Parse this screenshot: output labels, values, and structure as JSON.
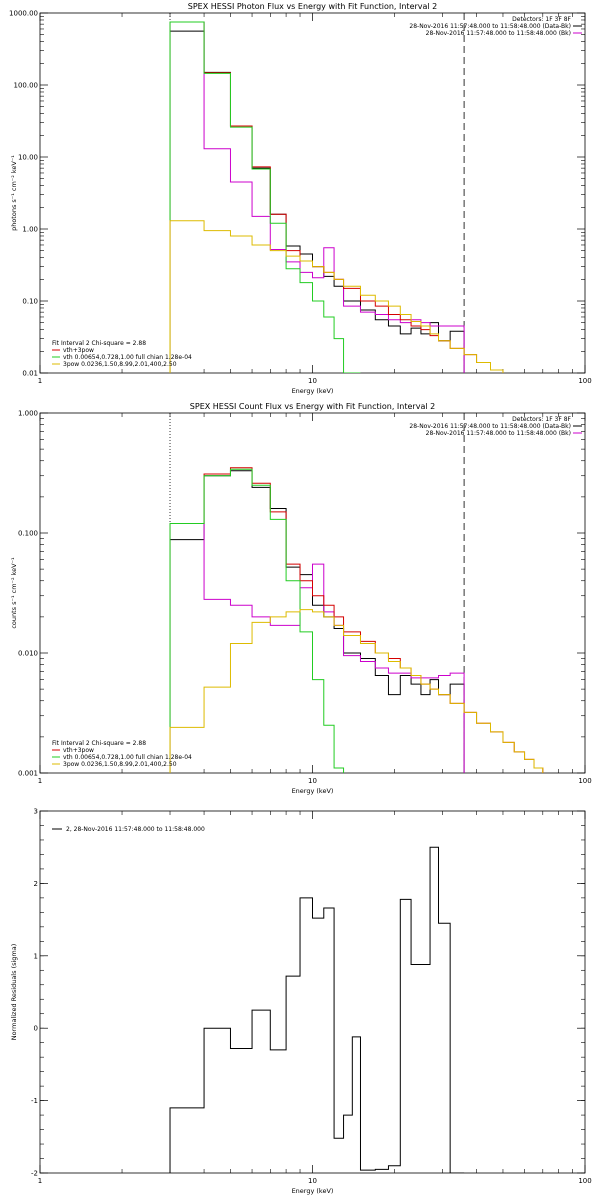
{
  "chart_data": [
    {
      "type": "line",
      "title": "SPEX HESSI Photon Flux vs Energy with Fit Function, Interval 2",
      "xlabel": "Energy (keV)",
      "ylabel": "photons s⁻¹ cm⁻² keV⁻¹",
      "xscale": "log",
      "yscale": "log",
      "xlim": [
        1,
        100
      ],
      "ylim": [
        0.01,
        1000
      ],
      "x_ticks": [
        {
          "v": 1,
          "label": "1"
        },
        {
          "v": 10,
          "label": "10"
        },
        {
          "v": 100,
          "label": "100"
        }
      ],
      "y_ticks": [
        {
          "v": 0.01,
          "label": "0.01"
        },
        {
          "v": 0.1,
          "label": "0.10"
        },
        {
          "v": 1,
          "label": "1.00"
        },
        {
          "v": 10,
          "label": "10.00"
        },
        {
          "v": 100,
          "label": "100.00"
        },
        {
          "v": 1000,
          "label": "1000.00"
        }
      ],
      "vlines": [
        {
          "x": 3.0,
          "style": "dotted",
          "color": "#000000"
        },
        {
          "x": 36.0,
          "style": "dashed",
          "color": "#000000"
        }
      ],
      "annot_right": [
        "Detectors: 1F 3F 8F",
        "28-Nov-2016 11:57:48.000 to 11:58:48.000 (Data-Bk)",
        "28-Nov-2016 11:57:48.000 to 11:58:48.000 (Bk)"
      ],
      "annot_right_colors": [
        "#000000",
        "#000000",
        "#cc00cc"
      ],
      "legend_title": "Fit Interval 2  Chi-square = 2.88",
      "legend": [
        {
          "label": "vth+3pow",
          "color": "#d40000"
        },
        {
          "label": "vth 0.00654,0.728,1.00  full chian 1.28e-04",
          "color": "#22cc22"
        },
        {
          "label": "3pow 0.0236,1.50,8.99,2.01,400,2.50",
          "color": "#ddbb00"
        }
      ],
      "edges": [
        3,
        4,
        5,
        6,
        7,
        8,
        9,
        10,
        11,
        12,
        13,
        15,
        17,
        19,
        21,
        23,
        25,
        27,
        29,
        32,
        36,
        40,
        45,
        50
      ],
      "series": [
        {
          "color": "#000000",
          "values": [
            560,
            150,
            27,
            7.0,
            1.6,
            0.58,
            0.45,
            0.3,
            0.22,
            0.16,
            0.1,
            0.075,
            0.055,
            0.045,
            0.035,
            0.042,
            0.035,
            0.05,
            0.028,
            0.038
          ]
        },
        {
          "color": "#cc00cc",
          "values": [
            750,
            13,
            4.5,
            1.5,
            0.52,
            0.35,
            0.25,
            0.21,
            0.55,
            0.2,
            0.085,
            0.07,
            0.065,
            0.055,
            0.05,
            0.055,
            0.05,
            0.045,
            0.045,
            0.045
          ]
        },
        {
          "color": "#d40000",
          "values": [
            750,
            148,
            27,
            7.3,
            1.6,
            0.5,
            0.36,
            0.3,
            0.25,
            0.2,
            0.15,
            0.1,
            0.085,
            0.065,
            0.055,
            0.045,
            0.04,
            0.033,
            0.028,
            0.022,
            0.018,
            0.014,
            0.011
          ]
        },
        {
          "color": "#22cc22",
          "values": [
            750,
            145,
            26,
            6.8,
            1.2,
            0.28,
            0.18,
            0.1,
            0.06,
            0.03,
            0.01
          ]
        },
        {
          "color": "#ddbb00",
          "values": [
            1.3,
            0.95,
            0.8,
            0.6,
            0.5,
            0.42,
            0.36,
            0.3,
            0.25,
            0.2,
            0.16,
            0.12,
            0.1,
            0.085,
            0.065,
            0.052,
            0.045,
            0.035,
            0.028,
            0.022,
            0.018,
            0.014,
            0.011
          ]
        }
      ]
    },
    {
      "type": "line",
      "title": "SPEX HESSI Count Flux vs Energy with Fit Function, Interval 2",
      "xlabel": "Energy (keV)",
      "ylabel": "counts s⁻¹ cm⁻² keV⁻¹",
      "xscale": "log",
      "yscale": "log",
      "xlim": [
        1,
        100
      ],
      "ylim": [
        0.001,
        1
      ],
      "x_ticks": [
        {
          "v": 1,
          "label": "1"
        },
        {
          "v": 10,
          "label": "10"
        },
        {
          "v": 100,
          "label": "100"
        }
      ],
      "y_ticks": [
        {
          "v": 0.001,
          "label": "0.001"
        },
        {
          "v": 0.01,
          "label": "0.010"
        },
        {
          "v": 0.1,
          "label": "0.100"
        },
        {
          "v": 1,
          "label": "1.000"
        }
      ],
      "vlines": [
        {
          "x": 3.0,
          "style": "dotted",
          "color": "#000000"
        },
        {
          "x": 36.0,
          "style": "dashed",
          "color": "#000000"
        }
      ],
      "annot_right": [
        "Detectors: 1F 3F 8F",
        "28-Nov-2016 11:57:48.000 to 11:58:48.000 (Data-Bk)",
        "28-Nov-2016 11:57:48.000 to 11:58:48.000 (Bk)"
      ],
      "annot_right_colors": [
        "#000000",
        "#000000",
        "#cc00cc"
      ],
      "legend_title": "Fit Interval 2  Chi-square = 2.88",
      "legend": [
        {
          "label": "vth+3pow",
          "color": "#d40000"
        },
        {
          "label": "vth 0.00654,0.728,1.00  full chian 1.28e-04",
          "color": "#22cc22"
        },
        {
          "label": "3pow 0.0236,1.50,8.99,2.01,400,2.50",
          "color": "#ddbb00"
        }
      ],
      "edges": [
        3,
        4,
        5,
        6,
        7,
        8,
        9,
        10,
        11,
        12,
        13,
        15,
        17,
        19,
        21,
        23,
        25,
        27,
        29,
        32,
        36,
        40,
        45,
        50,
        55,
        60,
        65,
        70
      ],
      "series": [
        {
          "color": "#000000",
          "values": [
            0.088,
            0.3,
            0.33,
            0.24,
            0.16,
            0.052,
            0.045,
            0.025,
            0.02,
            0.016,
            0.01,
            0.009,
            0.0065,
            0.0045,
            0.0065,
            0.0055,
            0.0045,
            0.006,
            0.0045,
            0.0055
          ]
        },
        {
          "color": "#cc00cc",
          "values": [
            0.12,
            0.028,
            0.025,
            0.02,
            0.017,
            0.017,
            0.035,
            0.055,
            0.022,
            0.017,
            0.0095,
            0.0085,
            0.0075,
            0.0068,
            0.0068,
            0.0062,
            0.0062,
            0.0062,
            0.0065,
            0.0068
          ]
        },
        {
          "color": "#d40000",
          "values": [
            0.12,
            0.31,
            0.35,
            0.26,
            0.15,
            0.055,
            0.04,
            0.03,
            0.025,
            0.02,
            0.015,
            0.0125,
            0.01,
            0.009,
            0.0075,
            0.0065,
            0.0055,
            0.005,
            0.0045,
            0.0038,
            0.0032,
            0.0026,
            0.0022,
            0.0018,
            0.0015,
            0.0013,
            0.0011
          ]
        },
        {
          "color": "#22cc22",
          "values": [
            0.12,
            0.3,
            0.34,
            0.25,
            0.13,
            0.04,
            0.015,
            0.006,
            0.0025,
            0.0011
          ]
        },
        {
          "color": "#ddbb00",
          "values": [
            0.0024,
            0.0052,
            0.012,
            0.018,
            0.02,
            0.022,
            0.023,
            0.022,
            0.02,
            0.017,
            0.014,
            0.012,
            0.01,
            0.0085,
            0.0075,
            0.0065,
            0.0055,
            0.005,
            0.0045,
            0.0038,
            0.0032,
            0.0026,
            0.0022,
            0.0018,
            0.0015,
            0.0013,
            0.0011
          ]
        }
      ]
    },
    {
      "type": "line",
      "title": "",
      "xlabel": "Energy (keV)",
      "ylabel": "Normalized Residuals (sigma)",
      "xscale": "log",
      "yscale": "linear",
      "xlim": [
        1,
        100
      ],
      "ylim": [
        -2,
        3
      ],
      "x_ticks": [
        {
          "v": 1,
          "label": "1"
        },
        {
          "v": 10,
          "label": "10"
        },
        {
          "v": 100,
          "label": "100"
        }
      ],
      "y_ticks": [
        {
          "v": -2,
          "label": "-2"
        },
        {
          "v": -1,
          "label": "-1"
        },
        {
          "v": 0,
          "label": "0"
        },
        {
          "v": 1,
          "label": "1"
        },
        {
          "v": 2,
          "label": "2"
        },
        {
          "v": 3,
          "label": "3"
        }
      ],
      "vlines": [],
      "annot_right": [],
      "legend_title": "",
      "legend": [
        {
          "label": "2, 28-Nov-2016 11:57:48.000 to 11:58:48.000",
          "color": "#000000"
        }
      ],
      "edges": [
        3,
        4,
        5,
        6,
        7,
        8,
        9,
        10,
        11,
        12,
        13,
        14,
        15,
        17,
        19,
        21,
        23,
        25,
        27,
        29,
        32,
        36
      ],
      "series": [
        {
          "color": "#000000",
          "values": [
            -1.1,
            0.0,
            -0.28,
            0.25,
            -0.3,
            0.72,
            1.8,
            1.52,
            1.66,
            -1.52,
            -1.2,
            -0.12,
            -1.96,
            -1.95,
            -1.9,
            1.78,
            0.88,
            0.88,
            2.5,
            1.45,
            -2.0
          ]
        }
      ]
    }
  ]
}
